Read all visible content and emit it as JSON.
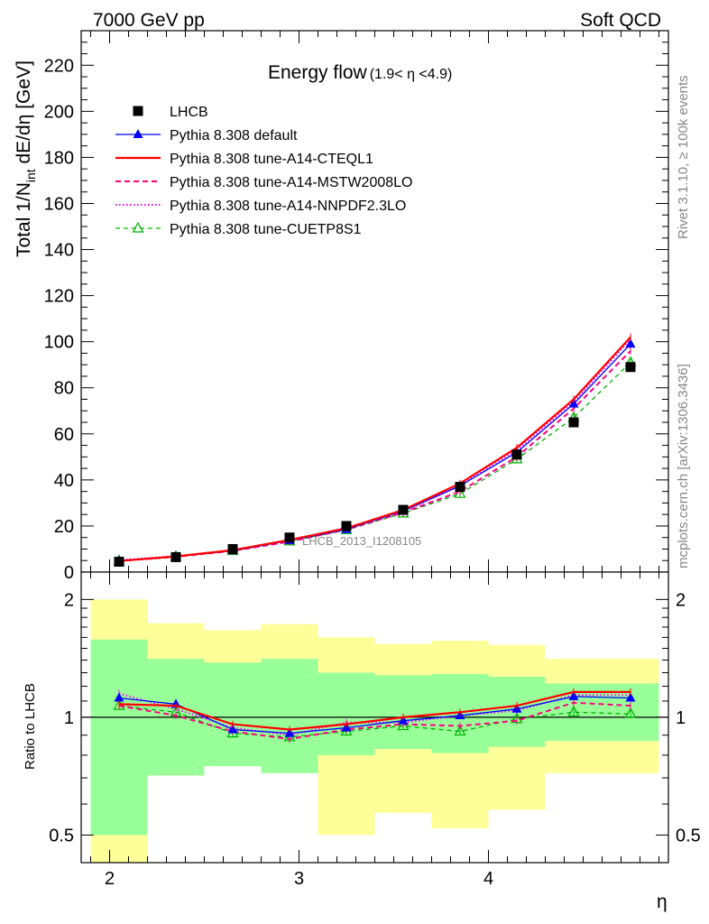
{
  "header": {
    "left_title": "7000 GeV pp",
    "right_title": "Soft QCD",
    "plot_title": "Energy flow",
    "plot_title_range": "(1.9< η <4.9)",
    "watermark": "LHCB_2013_I1208105",
    "side_top": "Rivet 3.1.10, ≥ 100k events",
    "side_bottom": "mcplots.cern.ch [arXiv:1306.3436]"
  },
  "colors": {
    "data": "#000000",
    "default": "#0000ff",
    "cteql1": "#ff0000",
    "mstw": "#ff0080",
    "nnpdf": "#ff00ff",
    "cuetp8s1": "#00b000",
    "band_outer": "#ffff99",
    "band_inner": "#99ff99"
  },
  "chart_data": [
    {
      "type": "line",
      "title": "Energy flow",
      "xlabel": "",
      "ylabel_main": "Total 1/N",
      "ylabel_sub": "int",
      "ylabel_rest": " dE/dη [GeV]",
      "xlim": [
        1.85,
        4.95
      ],
      "ylim": [
        0,
        235
      ],
      "yticks": [
        0,
        20,
        40,
        60,
        80,
        100,
        120,
        140,
        160,
        180,
        200,
        220
      ],
      "ytick_labels": [
        "0",
        "20",
        "40",
        "60",
        "80",
        "100",
        "120",
        "140",
        "160",
        "180",
        "200",
        "220"
      ],
      "x": [
        2.05,
        2.35,
        2.65,
        2.95,
        3.25,
        3.55,
        3.85,
        4.15,
        4.45,
        4.75
      ],
      "series": [
        {
          "key": "data",
          "name": "LHCB",
          "style": "marker",
          "values": [
            4.5,
            6.5,
            10.0,
            15.0,
            20.0,
            27.0,
            37.0,
            51.0,
            65.0,
            89.0
          ]
        },
        {
          "key": "default",
          "name": "Pythia 8.308 default",
          "style": "solid-tri",
          "values": [
            5.0,
            6.8,
            9.3,
            13.7,
            18.5,
            26.5,
            37.5,
            52.0,
            73.0,
            99.0
          ]
        },
        {
          "key": "cteql1",
          "name": "Pythia 8.308 tune-A14-CTEQL1",
          "style": "solid",
          "values": [
            4.8,
            6.8,
            9.5,
            14.0,
            19.0,
            27.0,
            38.5,
            54.0,
            75.0,
            102.0
          ]
        },
        {
          "key": "mstw",
          "name": "Pythia 8.308 tune-A14-MSTW2008LO",
          "style": "dashed",
          "values": [
            4.8,
            6.6,
            9.2,
            13.2,
            18.5,
            25.8,
            35.0,
            50.0,
            71.0,
            96.0
          ]
        },
        {
          "key": "nnpdf",
          "name": "Pythia 8.308 tune-A14-NNPDF2.3LO",
          "style": "dotted",
          "values": [
            5.2,
            6.9,
            9.4,
            13.7,
            19.3,
            26.3,
            37.5,
            53.0,
            74.0,
            101.0
          ]
        },
        {
          "key": "cuetp8s1",
          "name": "Pythia 8.308 tune-CUETP8S1",
          "style": "dashed-tri",
          "values": [
            4.8,
            6.7,
            9.2,
            13.4,
            18.3,
            25.5,
            34.0,
            49.0,
            67.0,
            91.0
          ]
        }
      ]
    },
    {
      "type": "line",
      "title": "",
      "xlabel": "η",
      "ylabel": "Ratio to LHCB",
      "log_y": true,
      "xlim": [
        1.85,
        4.95
      ],
      "ylim": [
        0.425,
        2.35
      ],
      "yticks": [
        0.5,
        1,
        2
      ],
      "ytick_labels": [
        "0.5",
        "1",
        "2"
      ],
      "xticks": [
        2,
        3,
        4
      ],
      "xtick_labels": [
        "2",
        "3",
        "4"
      ],
      "x": [
        2.05,
        2.35,
        2.65,
        2.95,
        3.25,
        3.55,
        3.85,
        4.15,
        4.45,
        4.75
      ],
      "bands": {
        "edges": [
          1.9,
          2.2,
          2.5,
          2.8,
          3.1,
          3.4,
          3.7,
          4.0,
          4.3,
          4.6,
          4.9
        ],
        "outer_lo": [
          0.35,
          0.71,
          0.75,
          0.72,
          0.5,
          0.57,
          0.52,
          0.58,
          0.72,
          0.72
        ],
        "outer_hi": [
          2.0,
          1.74,
          1.67,
          1.73,
          1.6,
          1.54,
          1.57,
          1.53,
          1.41,
          1.41
        ],
        "inner_lo": [
          0.5,
          0.71,
          0.75,
          0.72,
          0.8,
          0.83,
          0.81,
          0.84,
          0.87,
          0.87
        ],
        "inner_hi": [
          1.58,
          1.41,
          1.38,
          1.41,
          1.3,
          1.28,
          1.29,
          1.27,
          1.22,
          1.22
        ]
      },
      "series": [
        {
          "key": "default",
          "values": [
            1.12,
            1.08,
            0.93,
            0.91,
            0.94,
            0.98,
            1.01,
            1.05,
            1.13,
            1.12
          ]
        },
        {
          "key": "cteql1",
          "values": [
            1.08,
            1.07,
            0.96,
            0.93,
            0.96,
            1.0,
            1.03,
            1.07,
            1.16,
            1.16
          ]
        },
        {
          "key": "mstw",
          "values": [
            1.07,
            1.01,
            0.92,
            0.88,
            0.93,
            0.96,
            0.95,
            0.98,
            1.09,
            1.07
          ]
        },
        {
          "key": "nnpdf",
          "values": [
            1.15,
            1.05,
            0.94,
            0.9,
            0.97,
            0.97,
            1.01,
            1.04,
            1.14,
            1.14
          ]
        },
        {
          "key": "cuetp8s1",
          "values": [
            1.07,
            1.03,
            0.91,
            0.89,
            0.92,
            0.95,
            0.92,
            0.99,
            1.03,
            1.02
          ]
        }
      ]
    }
  ]
}
